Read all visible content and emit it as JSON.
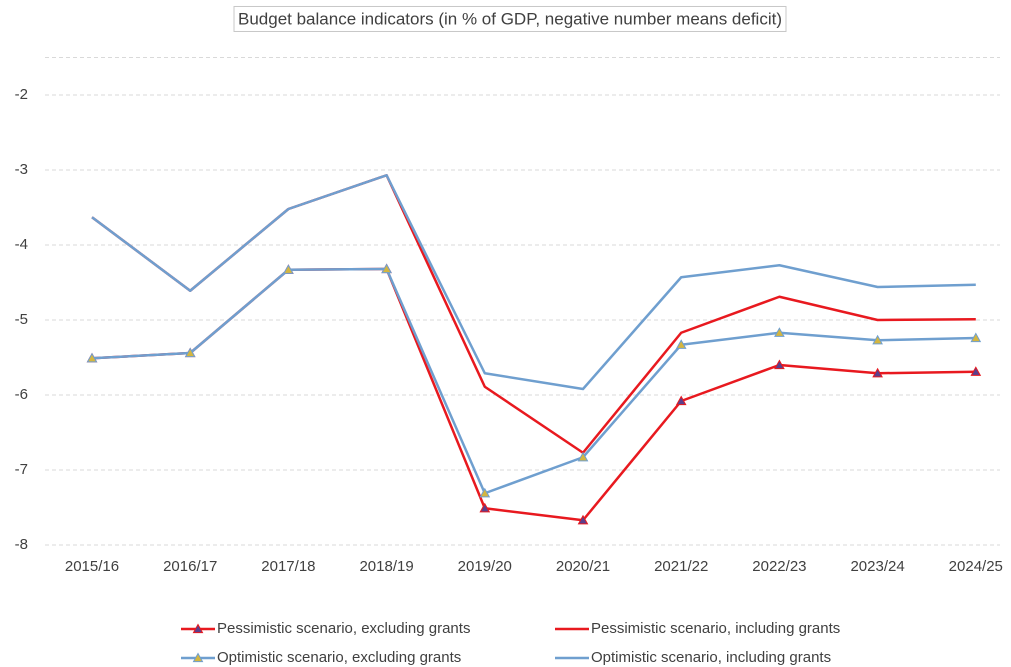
{
  "chart_data": {
    "type": "line",
    "title": "Budget balance indicators (in % of GDP, negative number means deficit)",
    "categories": [
      "2015/16",
      "2016/17",
      "2017/18",
      "2018/19",
      "2019/20",
      "2020/21",
      "2021/22",
      "2022/23",
      "2023/24",
      "2024/25"
    ],
    "ylim": [
      -8,
      -1.5
    ],
    "yticks": [
      -8,
      -7,
      -6,
      -5,
      -4,
      -3,
      -2
    ],
    "grid": true,
    "legend": "bottom",
    "series": [
      {
        "name": "Pessimistic scenario, excluding grants",
        "color": "#e8191f",
        "marker": "triangle",
        "marker_color": "#5b3f8c",
        "values": [
          -5.51,
          -5.44,
          -4.33,
          -4.32,
          -7.51,
          -7.67,
          -6.08,
          -5.6,
          -5.71,
          -5.69
        ]
      },
      {
        "name": "Pessimistic scenario, including grants",
        "color": "#e8191f",
        "values": [
          -3.63,
          -4.61,
          -3.52,
          -3.07,
          -5.89,
          -6.77,
          -5.17,
          -4.69,
          -5.0,
          -4.99
        ]
      },
      {
        "name": "Optimistic scenario, excluding grants",
        "color": "#6f9fcf",
        "marker": "triangle",
        "marker_color": "#d4b640",
        "values": [
          -5.51,
          -5.44,
          -4.33,
          -4.32,
          -7.31,
          -6.83,
          -5.33,
          -5.17,
          -5.27,
          -5.24
        ]
      },
      {
        "name": "Optimistic scenario, including grants",
        "color": "#6f9fcf",
        "values": [
          -3.63,
          -4.61,
          -3.52,
          -3.07,
          -5.71,
          -5.92,
          -4.43,
          -4.27,
          -4.56,
          -4.53
        ]
      }
    ]
  }
}
